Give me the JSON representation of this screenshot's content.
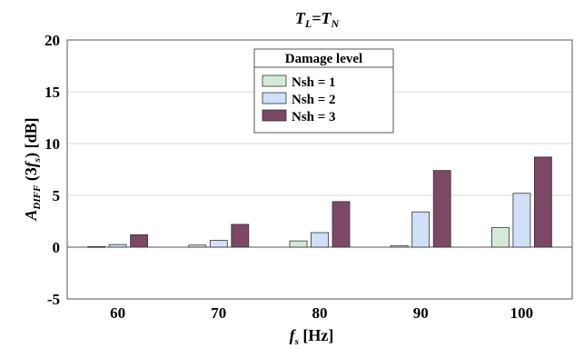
{
  "chart_data": {
    "type": "bar",
    "title": {
      "main": "T",
      "sub1": "L",
      "eq": "=",
      "main2": "T",
      "sub2": "N"
    },
    "ylabel": {
      "pre": "A",
      "sub": "DIFF",
      "mid": " (3",
      "f": "f",
      "fsub": "s",
      "post": ") [dB]"
    },
    "xlabel": {
      "f": "f",
      "sub": "s",
      "post": " [Hz]"
    },
    "categories": [
      "60",
      "70",
      "80",
      "90",
      "100"
    ],
    "ylim": [
      -5,
      20
    ],
    "yticks": [
      -5,
      0,
      5,
      10,
      15,
      20
    ],
    "ytick_labels": [
      "-5",
      "0",
      "5",
      "10",
      "15",
      "20"
    ],
    "grid": "horizontal",
    "legend_title": "Damage level",
    "legend_position": "top-center",
    "series": [
      {
        "name": "Nsh = 1",
        "color": "#d4ead9",
        "values": [
          0.05,
          0.2,
          0.6,
          0.15,
          1.9
        ]
      },
      {
        "name": "Nsh = 2",
        "color": "#cfe0f7",
        "values": [
          0.25,
          0.65,
          1.4,
          3.4,
          5.2
        ]
      },
      {
        "name": "Nsh = 3",
        "color": "#7c4866",
        "values": [
          1.2,
          2.2,
          4.4,
          7.4,
          8.7
        ]
      }
    ]
  }
}
